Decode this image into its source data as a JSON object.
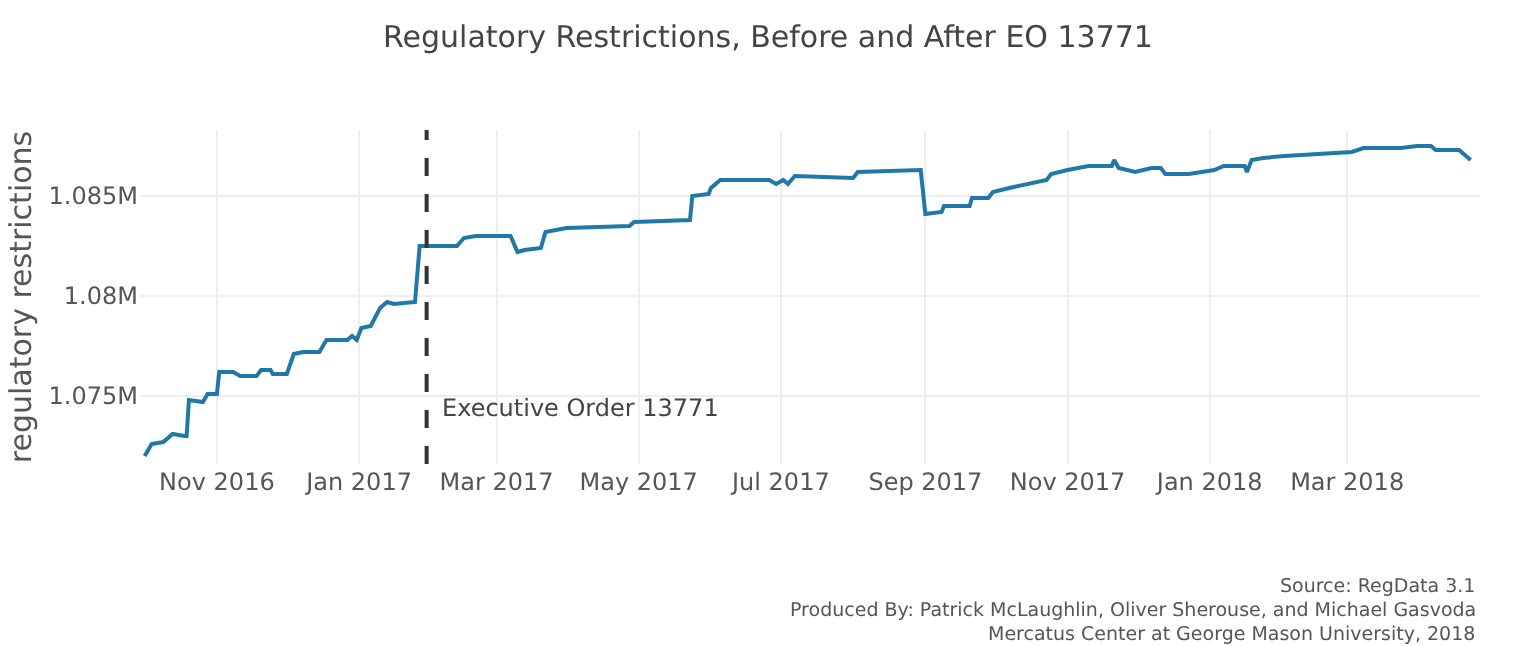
{
  "chart_data": {
    "type": "line",
    "title": "Regulatory Restrictions, Before and After EO 13771",
    "ylabel": "regulatory restrictions",
    "x": [
      "2016-10-01",
      "2016-10-04",
      "2016-10-09",
      "2016-10-13",
      "2016-10-18",
      "2016-10-19",
      "2016-10-20",
      "2016-10-26",
      "2016-10-28",
      "2016-11-01",
      "2016-11-02",
      "2016-11-08",
      "2016-11-11",
      "2016-11-18",
      "2016-11-20",
      "2016-11-24",
      "2016-11-25",
      "2016-12-01",
      "2016-12-04",
      "2016-12-08",
      "2016-12-15",
      "2016-12-18",
      "2016-12-27",
      "2016-12-29",
      "2016-12-31",
      "2017-01-02",
      "2017-01-06",
      "2017-01-10",
      "2017-01-13",
      "2017-01-16",
      "2017-01-25",
      "2017-01-27",
      "2017-02-12",
      "2017-02-15",
      "2017-02-20",
      "2017-03-07",
      "2017-03-10",
      "2017-03-13",
      "2017-03-20",
      "2017-03-22",
      "2017-03-31",
      "2017-04-27",
      "2017-04-29",
      "2017-05-23",
      "2017-05-24",
      "2017-05-31",
      "2017-06-01",
      "2017-06-05",
      "2017-06-26",
      "2017-06-29",
      "2017-07-02",
      "2017-07-04",
      "2017-07-07",
      "2017-08-01",
      "2017-08-03",
      "2017-08-30",
      "2017-09-01",
      "2017-09-08",
      "2017-09-09",
      "2017-09-20",
      "2017-09-21",
      "2017-09-28",
      "2017-09-30",
      "2017-10-07",
      "2017-10-23",
      "2017-10-25",
      "2017-11-01",
      "2017-11-10",
      "2017-11-20",
      "2017-11-21",
      "2017-11-23",
      "2017-11-30",
      "2017-12-07",
      "2017-12-11",
      "2017-12-13",
      "2017-12-23",
      "2018-01-03",
      "2018-01-07",
      "2018-01-16",
      "2018-01-17",
      "2018-01-19",
      "2018-01-24",
      "2018-02-02",
      "2018-03-03",
      "2018-03-08",
      "2018-03-24",
      "2018-03-31",
      "2018-04-06",
      "2018-04-08",
      "2018-04-18",
      "2018-04-23"
    ],
    "series": [
      {
        "color": "#1f78a8",
        "values": [
          1072000,
          1072600,
          1072700,
          1073100,
          1073000,
          1073000,
          1074800,
          1074700,
          1075100,
          1075100,
          1076200,
          1076200,
          1076000,
          1076000,
          1076300,
          1076300,
          1076100,
          1076100,
          1077100,
          1077200,
          1077200,
          1077800,
          1077800,
          1078000,
          1077800,
          1078400,
          1078500,
          1079400,
          1079700,
          1079600,
          1079700,
          1082500,
          1082500,
          1082900,
          1083000,
          1083000,
          1082200,
          1082300,
          1082400,
          1083200,
          1083400,
          1083500,
          1083700,
          1083800,
          1085000,
          1085100,
          1085400,
          1085800,
          1085800,
          1085600,
          1085800,
          1085600,
          1086000,
          1085900,
          1086200,
          1086300,
          1084100,
          1084200,
          1084500,
          1084500,
          1084900,
          1084900,
          1085200,
          1085400,
          1085800,
          1086100,
          1086300,
          1086500,
          1086500,
          1086800,
          1086400,
          1086200,
          1086400,
          1086400,
          1086100,
          1086100,
          1086300,
          1086500,
          1086500,
          1086200,
          1086800,
          1086900,
          1087000,
          1087200,
          1087400,
          1087400,
          1087500,
          1087500,
          1087300,
          1087300,
          1086800
        ]
      }
    ],
    "xlim": [
      "2016-09-29",
      "2018-04-27"
    ],
    "xticks": [
      {
        "value": "2016-11-01",
        "label": "Nov 2016"
      },
      {
        "value": "2017-01-01",
        "label": "Jan 2017"
      },
      {
        "value": "2017-03-01",
        "label": "Mar 2017"
      },
      {
        "value": "2017-05-01",
        "label": "May 2017"
      },
      {
        "value": "2017-07-01",
        "label": "Jul 2017"
      },
      {
        "value": "2017-09-01",
        "label": "Sep 2017"
      },
      {
        "value": "2017-11-01",
        "label": "Nov 2017"
      },
      {
        "value": "2018-01-01",
        "label": "Jan 2018"
      },
      {
        "value": "2018-03-01",
        "label": "Mar 2018"
      }
    ],
    "ylim": [
      1071600,
      1088300
    ],
    "yticks": [
      {
        "value": 1075000,
        "label": "1.075M"
      },
      {
        "value": 1080000,
        "label": "1.08M"
      },
      {
        "value": 1085000,
        "label": "1.085M"
      }
    ],
    "ref_lines": [
      {
        "axis": "x",
        "value": "2017-01-30",
        "label": "Executive Order 13771",
        "color": "#333333",
        "line_style": "dashed"
      }
    ],
    "annotations": [
      "Source: RegData 3.1",
      "Produced By: Patrick McLaughlin, Oliver Sherouse, and Michael Gasvoda",
      "Mercatus Center at George Mason University, 2018"
    ],
    "grid": true,
    "marker": "none",
    "line_style": "solid"
  }
}
